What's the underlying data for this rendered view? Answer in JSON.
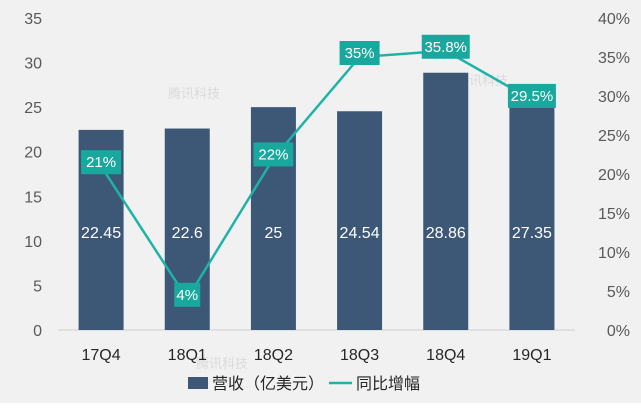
{
  "chart_data": {
    "type": "bar",
    "categories": [
      "17Q4",
      "18Q1",
      "18Q2",
      "18Q3",
      "18Q4",
      "19Q1"
    ],
    "series": [
      {
        "name": "营收（亿美元）",
        "kind": "bar",
        "axis": "left",
        "values": [
          22.45,
          22.6,
          25,
          24.54,
          28.86,
          27.35
        ],
        "labels": [
          "22.45",
          "22.6",
          "25",
          "24.54",
          "28.86",
          "27.35"
        ],
        "color": "#3d5776"
      },
      {
        "name": "同比增幅",
        "kind": "line",
        "axis": "right",
        "values": [
          21,
          4,
          22,
          35,
          35.8,
          29.5
        ],
        "labels": [
          "21%",
          "4%",
          "22%",
          "35%",
          "35.8%",
          "29.5%"
        ],
        "color": "#1fb3a8"
      }
    ],
    "ylim_left": [
      0,
      35
    ],
    "yticks_left": [
      "0",
      "5",
      "10",
      "15",
      "20",
      "25",
      "30",
      "35"
    ],
    "ylim_right": [
      0,
      40
    ],
    "yticks_right": [
      "0%",
      "5%",
      "10%",
      "15%",
      "20%",
      "25%",
      "30%",
      "35%",
      "40%"
    ],
    "legend_position": "bottom",
    "grid": false
  },
  "watermark": {
    "text": "腾讯科技"
  },
  "colors": {
    "background": "#f1f1f1",
    "bar": "#3d5776",
    "line": "#1fb3a8",
    "label_box": "#19a89e"
  }
}
